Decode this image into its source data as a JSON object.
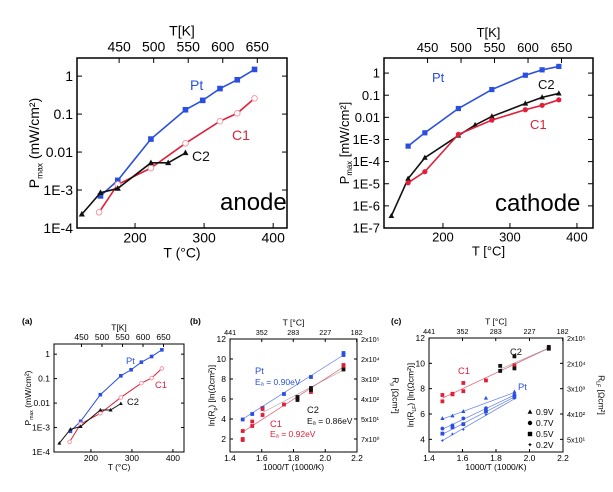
{
  "colors": {
    "Pt": "#2a4fe0",
    "C1": "#e0203a",
    "C2": "#111111",
    "fit_C2": "#8a8a8a"
  },
  "chart_data": [
    {
      "id": "anode",
      "type": "line",
      "panel_label": "",
      "annotation": "anode",
      "xlabel": "T (°C)",
      "ylabel": [
        "P",
        "max",
        " (mW/cm²)"
      ],
      "top_label": "T[K]",
      "xlim": [
        116,
        420
      ],
      "ylim": [
        0.0001,
        3
      ],
      "yscale": "log",
      "xticks": [
        200,
        300,
        400
      ],
      "yticks": [
        {
          "v": 0.0001,
          "l": "1E-4"
        },
        {
          "v": 0.001,
          "l": "1E-3"
        },
        {
          "v": 0.01,
          "l": "0.01"
        },
        {
          "v": 0.1,
          "l": "0.1"
        },
        {
          "v": 1,
          "l": "1"
        }
      ],
      "top_ticks_K": [
        450,
        500,
        550,
        600,
        650
      ],
      "series": [
        {
          "name": "Pt",
          "marker": "square",
          "x": [
            150,
            175,
            223,
            273,
            298,
            323,
            348,
            373
          ],
          "y": [
            0.0007,
            0.0018,
            0.022,
            0.13,
            0.23,
            0.47,
            0.8,
            1.5
          ]
        },
        {
          "name": "C1",
          "marker": "open-circle",
          "x": [
            148,
            175,
            223,
            273,
            323,
            348,
            373
          ],
          "y": [
            0.00026,
            0.0014,
            0.0038,
            0.017,
            0.065,
            0.105,
            0.26
          ]
        },
        {
          "name": "C2",
          "marker": "triangle",
          "x": [
            123,
            150,
            175,
            223,
            248,
            273
          ],
          "y": [
            0.00023,
            0.00085,
            0.0011,
            0.0052,
            0.0052,
            0.0095
          ]
        }
      ]
    },
    {
      "id": "cathode",
      "type": "line",
      "panel_label": "",
      "annotation": "cathode",
      "xlabel": "T [°C]",
      "ylabel": [
        "P",
        "max",
        " [mW/cm²]"
      ],
      "top_label": "T[K]",
      "xlim": [
        112,
        424
      ],
      "ylim": [
        1e-07,
        4.8
      ],
      "yscale": "log",
      "xticks": [
        200,
        300,
        400
      ],
      "yticks": [
        {
          "v": 1e-07,
          "l": "1E-7"
        },
        {
          "v": 1e-06,
          "l": "1E-6"
        },
        {
          "v": 1e-05,
          "l": "1E-5"
        },
        {
          "v": 0.0001,
          "l": "1E-4"
        },
        {
          "v": 0.001,
          "l": "1E-3"
        },
        {
          "v": 0.01,
          "l": "0.01"
        },
        {
          "v": 0.1,
          "l": "0.1"
        },
        {
          "v": 1,
          "l": "1"
        }
      ],
      "top_ticks_K": [
        450,
        500,
        550,
        600,
        650
      ],
      "series": [
        {
          "name": "Pt",
          "marker": "square",
          "x": [
            148,
            173,
            223,
            273,
            323,
            348,
            373
          ],
          "y": [
            0.0005,
            0.002,
            0.025,
            0.18,
            0.8,
            1.4,
            2.0
          ]
        },
        {
          "name": "C2",
          "marker": "triangle",
          "x": [
            123,
            148,
            173,
            223,
            248,
            273,
            323,
            348,
            373
          ],
          "y": [
            3.5e-07,
            1.7e-05,
            0.00015,
            0.0015,
            0.0045,
            0.011,
            0.042,
            0.08,
            0.12
          ]
        },
        {
          "name": "C1",
          "marker": "circle",
          "x": [
            148,
            173,
            223,
            273,
            323,
            348,
            373
          ],
          "y": [
            1.1e-05,
            3.5e-05,
            0.0017,
            0.0075,
            0.022,
            0.035,
            0.062
          ]
        }
      ]
    },
    {
      "id": "a",
      "type": "line",
      "panel_label": "(a)",
      "annotation": "",
      "xlabel": "T (°C)",
      "ylabel": [
        "P",
        "max",
        " (mW/cm²)"
      ],
      "top_label": "T[K]",
      "xlim": [
        110,
        427
      ],
      "ylim": [
        0.0001,
        2.6
      ],
      "yscale": "log",
      "xticks": [
        200,
        300,
        400
      ],
      "yticks": [
        {
          "v": 0.0001,
          "l": "1E-4"
        },
        {
          "v": 0.001,
          "l": "1E-3"
        },
        {
          "v": 0.01,
          "l": "0.01"
        },
        {
          "v": 0.1,
          "l": "0.1"
        },
        {
          "v": 1,
          "l": "1"
        }
      ],
      "top_ticks_K": [
        450,
        500,
        550,
        600,
        650
      ],
      "series": [
        {
          "name": "Pt",
          "marker": "square",
          "x": [
            150,
            175,
            223,
            273,
            298,
            323,
            348,
            373
          ],
          "y": [
            0.0007,
            0.0018,
            0.022,
            0.13,
            0.23,
            0.47,
            0.8,
            1.5
          ]
        },
        {
          "name": "C1",
          "marker": "open-circle",
          "x": [
            148,
            175,
            223,
            273,
            323,
            348,
            373
          ],
          "y": [
            0.00026,
            0.0014,
            0.0038,
            0.017,
            0.065,
            0.105,
            0.26
          ]
        },
        {
          "name": "C2",
          "marker": "triangle",
          "x": [
            123,
            150,
            175,
            223,
            248,
            273
          ],
          "y": [
            0.00023,
            0.00085,
            0.0011,
            0.0052,
            0.0052,
            0.0095
          ]
        }
      ]
    },
    {
      "id": "b",
      "type": "scatter",
      "panel_label": "(b)",
      "annotation": "",
      "xlabel": "1000/T (1000/K)",
      "ylabel": [
        "ln(R",
        "p",
        ") [ln(Ωcm²)]"
      ],
      "right_label": [
        "R",
        "p",
        " [Ωcm²]"
      ],
      "top_label": "T [°C]",
      "xlim": [
        1.4,
        2.2
      ],
      "ylim": [
        0.7,
        12
      ],
      "yscale": "linear",
      "xticks": [
        {
          "v": 1.4,
          "l": "1.4"
        },
        {
          "v": 1.6,
          "l": "1.6"
        },
        {
          "v": 1.8,
          "l": "1.8"
        },
        {
          "v": 2.0,
          "l": "2.0"
        },
        {
          "v": 2.2,
          "l": "2.2"
        }
      ],
      "yticks": [
        {
          "v": 2,
          "l": "2"
        },
        {
          "v": 4,
          "l": "4"
        },
        {
          "v": 6,
          "l": "6"
        },
        {
          "v": 8,
          "l": "8"
        },
        {
          "v": 10,
          "l": "10"
        },
        {
          "v": 12,
          "l": "12"
        }
      ],
      "top_ticks_C": [
        441,
        352,
        283,
        227,
        182
      ],
      "right_ticks": [
        {
          "v": 12,
          "l": "2x10⁵"
        },
        {
          "v": 10,
          "l": "2x10⁴"
        },
        {
          "v": 8,
          "l": "3x10³"
        },
        {
          "v": 6,
          "l": "4x10²"
        },
        {
          "v": 4,
          "l": "5x10¹"
        },
        {
          "v": 2,
          "l": "7x10⁰"
        }
      ],
      "series": [
        {
          "name": "Pt",
          "ea": "Eₐ = 0.90eV",
          "marker": "square",
          "x": [
            1.48,
            1.54,
            1.605,
            1.74,
            1.91,
            2.115,
            2.115
          ],
          "y": [
            3.95,
            4.5,
            5.1,
            6.5,
            8.2,
            10.4,
            10.6
          ],
          "fit": [
            [
              1.48,
              4.0
            ],
            [
              2.115,
              10.4
            ]
          ]
        },
        {
          "name": "C1",
          "ea": "Eₐ = 0.92eV",
          "marker": "square",
          "x": [
            1.48,
            1.48,
            1.48,
            1.54,
            1.54,
            1.605,
            1.605,
            1.74,
            1.91,
            2.115,
            2.115
          ],
          "y": [
            2.8,
            1.9,
            2.0,
            3.75,
            3.3,
            4.4,
            5.0,
            5.45,
            6.7,
            9.4,
            9.3
          ],
          "fit": [
            [
              1.48,
              2.7
            ],
            [
              2.115,
              9.2
            ]
          ]
        },
        {
          "name": "C2",
          "ea": "Eₐ = 0.86eV",
          "marker": "square",
          "x": [
            1.825,
            1.825,
            1.825,
            1.91,
            1.91,
            2.115
          ],
          "y": [
            5.9,
            6.1,
            6.2,
            6.9,
            7.1,
            8.95
          ],
          "fit": [
            [
              1.6,
              4.6
            ],
            [
              2.115,
              8.9
            ]
          ]
        }
      ]
    },
    {
      "id": "c",
      "type": "scatter",
      "panel_label": "(c)",
      "annotation": "",
      "xlabel": "1000/T (1000/K)",
      "ylabel": [
        "ln(R",
        "LF",
        ") [ln(Ωcm²)]"
      ],
      "right_label": [
        "R",
        "LF",
        " [Ωcm²]"
      ],
      "top_label": "T [°C]",
      "xlim": [
        1.4,
        2.2
      ],
      "ylim": [
        3,
        12
      ],
      "yscale": "linear",
      "xticks": [
        {
          "v": 1.4,
          "l": "1.4"
        },
        {
          "v": 1.6,
          "l": "1.6"
        },
        {
          "v": 1.8,
          "l": "1.8"
        },
        {
          "v": 2.0,
          "l": "2.0"
        },
        {
          "v": 2.2,
          "l": "2.2"
        }
      ],
      "yticks": [
        {
          "v": 4,
          "l": "4"
        },
        {
          "v": 6,
          "l": "6"
        },
        {
          "v": 8,
          "l": "8"
        },
        {
          "v": 10,
          "l": "10"
        },
        {
          "v": 12,
          "l": "12"
        }
      ],
      "top_ticks_C": [
        441,
        352,
        283,
        227,
        182
      ],
      "right_ticks": [
        {
          "v": 12,
          "l": "2x10⁵"
        },
        {
          "v": 10,
          "l": "2x10⁴"
        },
        {
          "v": 8,
          "l": "3x10³"
        },
        {
          "v": 6,
          "l": "4x10²"
        },
        {
          "v": 4,
          "l": "5x10¹"
        }
      ],
      "legend": [
        {
          "marker": "triangle",
          "label": "0.9V"
        },
        {
          "marker": "circle",
          "label": "0.7V"
        },
        {
          "marker": "square",
          "label": "0.5V"
        },
        {
          "marker": "star",
          "label": "0.2V"
        }
      ],
      "legend_position": "bottom-right",
      "series": [
        {
          "name": "C1",
          "marker": "square",
          "x": [
            1.48,
            1.48,
            1.54,
            1.54,
            1.605,
            1.605,
            1.74,
            1.91,
            2.115
          ],
          "y": [
            7.5,
            7.0,
            7.6,
            7.55,
            8.45,
            7.8,
            8.65,
            9.85,
            11.2
          ],
          "fit": [
            [
              1.48,
              7.25
            ],
            [
              2.115,
              11.2
            ]
          ]
        },
        {
          "name": "C2",
          "marker": "square",
          "x": [
            1.825,
            1.825,
            1.91,
            1.91,
            2.115,
            2.115
          ],
          "y": [
            9.8,
            9.4,
            10.55,
            9.6,
            11.15,
            11.3
          ],
          "fit": [
            [
              1.825,
              9.55
            ],
            [
              2.115,
              11.2
            ]
          ]
        },
        {
          "name": "Pt 0.9V",
          "group": "Pt",
          "marker": "triangle",
          "x": [
            1.48,
            1.54,
            1.605,
            1.74,
            1.91
          ],
          "y": [
            5.65,
            5.85,
            6.2,
            7.25,
            7.75
          ],
          "fit": [
            [
              1.48,
              5.6
            ],
            [
              1.91,
              7.7
            ]
          ]
        },
        {
          "name": "Pt 0.7V",
          "group": "Pt",
          "marker": "circle",
          "x": [
            1.48,
            1.54,
            1.605,
            1.74,
            1.91
          ],
          "y": [
            4.85,
            5.1,
            5.65,
            6.45,
            7.5
          ],
          "fit": [
            [
              1.48,
              4.8
            ],
            [
              1.91,
              7.5
            ]
          ]
        },
        {
          "name": "Pt 0.5V",
          "group": "Pt",
          "marker": "square",
          "x": [
            1.48,
            1.54,
            1.605,
            1.74,
            1.91
          ],
          "y": [
            4.45,
            4.95,
            5.2,
            6.2,
            7.35
          ],
          "fit": [
            [
              1.48,
              4.4
            ],
            [
              1.91,
              7.35
            ]
          ]
        },
        {
          "name": "Pt 0.2V",
          "group": "Pt",
          "marker": "star",
          "x": [
            1.48,
            1.54,
            1.605,
            1.74,
            1.91
          ],
          "y": [
            3.9,
            4.4,
            4.75,
            5.95,
            7.2
          ],
          "fit": [
            [
              1.48,
              3.9
            ],
            [
              1.91,
              7.2
            ]
          ]
        }
      ],
      "labels": [
        "C1",
        "C2",
        "Pt"
      ]
    }
  ]
}
